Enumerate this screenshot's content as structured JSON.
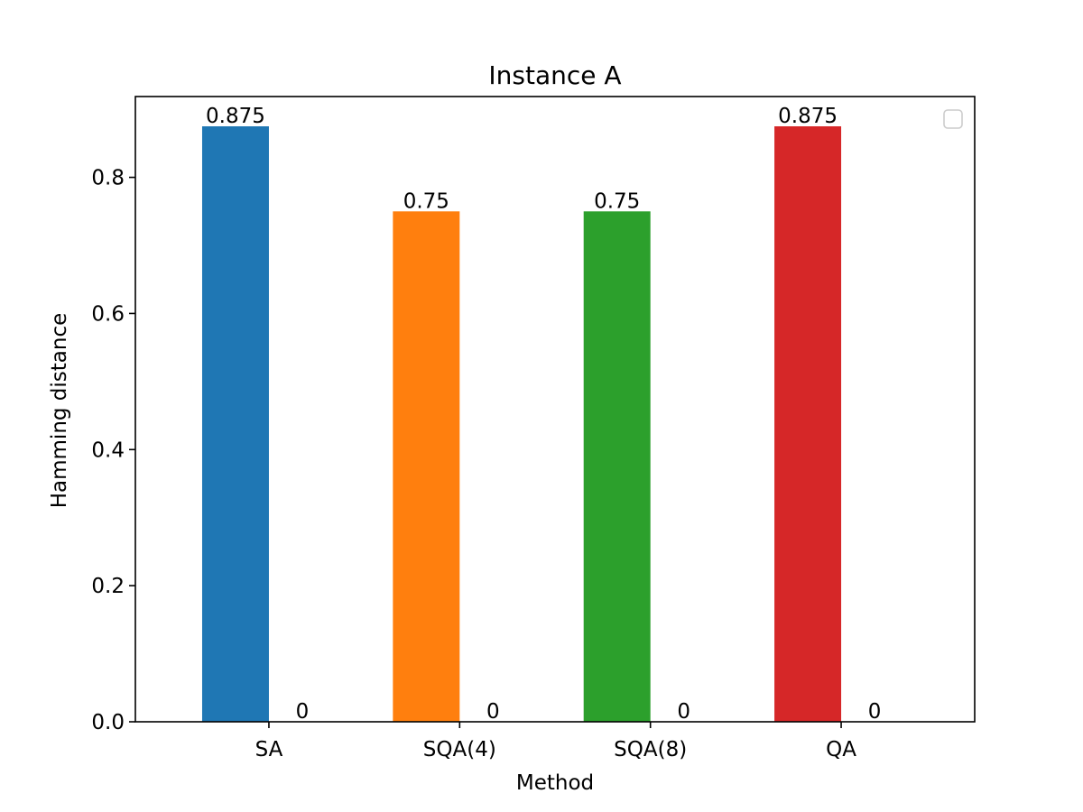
{
  "chart_data": {
    "type": "bar",
    "title": "Instance A",
    "xlabel": "Method",
    "ylabel": "Hamming distance",
    "categories": [
      "SA",
      "SQA(4)",
      "SQA(8)",
      "QA"
    ],
    "series": [
      {
        "values": [
          0.875,
          0.75,
          0.75,
          0.875
        ],
        "labels": [
          "0.875",
          "0.75",
          "0.75",
          "0.875"
        ],
        "colors": [
          "#1f77b4",
          "#ff7f0e",
          "#2ca02c",
          "#d62728"
        ]
      },
      {
        "values": [
          0,
          0,
          0,
          0
        ],
        "labels": [
          "0",
          "0",
          "0",
          "0"
        ],
        "colors": [
          "#1f77b4",
          "#ff7f0e",
          "#2ca02c",
          "#d62728"
        ]
      }
    ],
    "ylim": [
      0,
      0.91875
    ],
    "yticks": [
      0.0,
      0.2,
      0.4,
      0.6,
      0.8
    ],
    "ytick_labels": [
      "0.0",
      "0.2",
      "0.4",
      "0.6",
      "0.8"
    ],
    "grid": false,
    "legend": {
      "placement": "top-right",
      "entries": []
    }
  }
}
